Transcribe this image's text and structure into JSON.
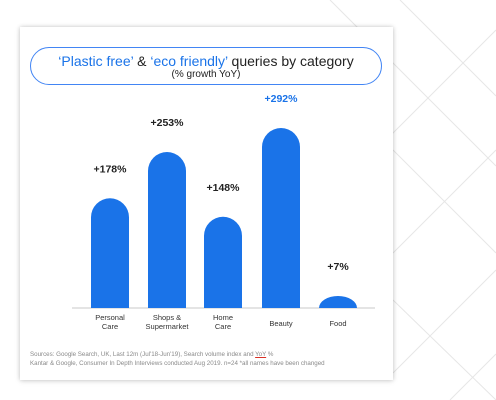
{
  "colors": {
    "bar": "#1a73e8",
    "highlight": "#1a73e8",
    "label": "#222222",
    "axis": "#c8c8c8",
    "background_lines": "#e6e6e6"
  },
  "title": {
    "part1": "‘Plastic free’",
    "part2": " & ",
    "part3": "‘eco friendly’",
    "part4": " queries by category",
    "subtitle": "(% growth YoY)"
  },
  "chart_data": {
    "type": "bar",
    "title": "‘Plastic free’ & ‘eco friendly’ queries by category",
    "subtitle": "(% growth YoY)",
    "categories": [
      [
        "Personal",
        "Care"
      ],
      [
        "Shops &",
        "Supermarket"
      ],
      [
        "Home",
        "Care"
      ],
      [
        "Beauty"
      ],
      [
        "Food"
      ]
    ],
    "values": [
      178,
      253,
      148,
      292,
      7
    ],
    "value_labels": [
      "+178%",
      "+253%",
      "+148%",
      "+292%",
      "+7%"
    ],
    "highlighted_label_index": 3,
    "xlabel": "",
    "ylabel": "",
    "grid": false,
    "legend": "none"
  },
  "sources": {
    "line1_before": "Sources: Google Search, UK, Last 12m (Jul'18-Jun'19), Search volume index  and ",
    "line1_yoy": "YoY",
    "line1_after": " %",
    "line2": "Kantar & Google, Consumer In Depth Interviews conducted Aug 2019. n=24 *all names have been changed"
  }
}
